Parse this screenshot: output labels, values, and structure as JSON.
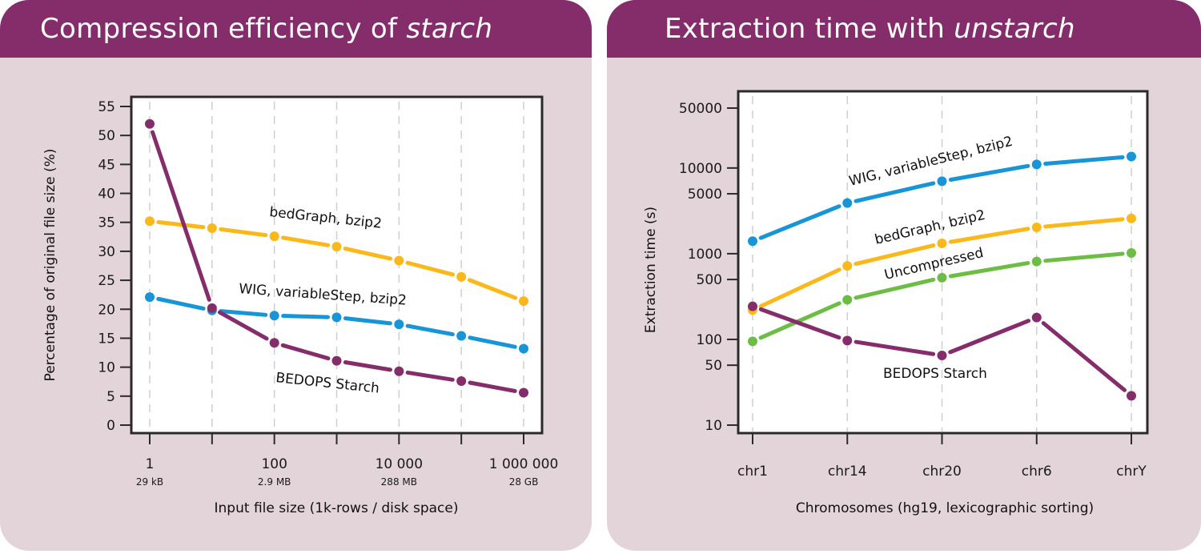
{
  "panels": [
    {
      "title_main": "Compression efficiency of ",
      "title_italic": "starch"
    },
    {
      "title_main": "Extraction time with ",
      "title_italic": "unstarch"
    }
  ],
  "colors": {
    "panel_bg": "#e3d4da",
    "header_bg": "#842d6a",
    "starch": "#842d6a",
    "bedgraph": "#fbb81b",
    "wig": "#1895d6",
    "uncompressed": "#6dbd45"
  },
  "chart_data": [
    {
      "type": "line",
      "title": "Compression efficiency of starch",
      "xlabel": "Input file size (1k-rows / disk space)",
      "ylabel": "Percentage of original file size (%)",
      "xscale": "log10",
      "x": [
        1,
        10,
        100,
        1000,
        10000,
        100000,
        1000000
      ],
      "xticks": [
        {
          "value": 1,
          "label": "1",
          "sublabel": "29 kB"
        },
        {
          "value": 10,
          "label": "",
          "sublabel": ""
        },
        {
          "value": 100,
          "label": "100",
          "sublabel": "2.9 MB"
        },
        {
          "value": 1000,
          "label": "",
          "sublabel": ""
        },
        {
          "value": 10000,
          "label": "10 000",
          "sublabel": "288 MB"
        },
        {
          "value": 100000,
          "label": "",
          "sublabel": ""
        },
        {
          "value": 1000000,
          "label": "1 000 000",
          "sublabel": "28 GB"
        }
      ],
      "yticks": [
        0,
        5,
        10,
        15,
        20,
        25,
        30,
        35,
        40,
        45,
        50,
        55
      ],
      "ylim": [
        0,
        55
      ],
      "grid": "vertical dashed",
      "series": [
        {
          "name": "bedGraph, bzip2",
          "color_key": "bedgraph",
          "values": [
            35.2,
            34.0,
            32.6,
            30.8,
            28.4,
            25.6,
            21.4
          ]
        },
        {
          "name": "WIG, variableStep, bzip2",
          "color_key": "wig",
          "values": [
            22.1,
            19.8,
            18.9,
            18.6,
            17.4,
            15.4,
            13.2
          ]
        },
        {
          "name": "BEDOPS Starch",
          "color_key": "starch",
          "values": [
            52.0,
            20.2,
            14.2,
            11.1,
            9.3,
            7.6,
            5.6
          ]
        }
      ]
    },
    {
      "type": "line",
      "title": "Extraction time with unstarch",
      "xlabel": "Chromosomes (hg19, lexicographic sorting)",
      "ylabel": "Extraction time (s)",
      "yscale": "log10",
      "categories": [
        "chr1",
        "chr14",
        "chr20",
        "chr6",
        "chrY"
      ],
      "yticks": [
        10,
        50,
        100,
        500,
        1000,
        5000,
        10000,
        50000
      ],
      "ylim": [
        7,
        75000
      ],
      "grid": "vertical dashed",
      "series": [
        {
          "name": "WIG, variableStep, bzip2",
          "color_key": "wig",
          "values": [
            1400,
            3900,
            7000,
            11000,
            13600
          ]
        },
        {
          "name": "bedGraph, bzip2",
          "color_key": "bedgraph",
          "values": [
            220,
            720,
            1320,
            2030,
            2580
          ]
        },
        {
          "name": "Uncompressed",
          "color_key": "uncompressed",
          "values": [
            95,
            290,
            525,
            810,
            1020
          ]
        },
        {
          "name": "BEDOPS Starch",
          "color_key": "starch",
          "values": [
            243,
            97,
            65,
            180,
            22
          ]
        }
      ]
    }
  ]
}
